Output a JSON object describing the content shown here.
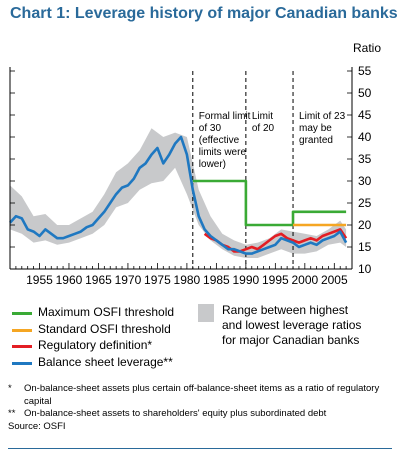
{
  "title": {
    "prefix": "Chart 1:",
    "text": "Leverage history of major Canadian banks"
  },
  "chart_data": {
    "type": "line",
    "ylabel": "Ratio",
    "ylim": [
      10,
      55
    ],
    "xlim": [
      1950,
      2008
    ],
    "y_ticks": [
      "10",
      "15",
      "20",
      "25",
      "30",
      "35",
      "40",
      "45",
      "50",
      "55"
    ],
    "x_ticks": [
      "1955",
      "1960",
      "1965",
      "1970",
      "1975",
      "1980",
      "1985",
      "1990",
      "1995",
      "2000",
      "2005"
    ],
    "grid": false,
    "legend_position": "bottom",
    "annotations": [
      {
        "text": [
          "Formal limit",
          "of 30",
          "(effective",
          "limits were",
          "lower)"
        ]
      },
      {
        "text": [
          "Limit",
          "of 20"
        ]
      },
      {
        "text": [
          "Limit of 23",
          "may be",
          "granted"
        ]
      }
    ],
    "regime_lines_x": [
      1981,
      1990,
      1998
    ],
    "series": [
      {
        "name": "Maximum OSFI threshold",
        "color": "#3aaa35",
        "x": [
          1981,
          1990,
          1990,
          1998,
          1998,
          2007
        ],
        "y": [
          30,
          30,
          20,
          20,
          23,
          23
        ]
      },
      {
        "name": "Standard OSFI threshold",
        "color": "#f5a623",
        "x": [
          1998,
          2007
        ],
        "y": [
          20,
          20
        ]
      },
      {
        "name": "Regulatory definition*",
        "color": "#e31e24",
        "x": [
          1983,
          1984,
          1985,
          1986,
          1987,
          1988,
          1989,
          1990,
          1991,
          1992,
          1993,
          1994,
          1995,
          1996,
          1997,
          1998,
          1999,
          2000,
          2001,
          2002,
          2003,
          2004,
          2005,
          2006,
          2007
        ],
        "y": [
          18,
          17,
          16.5,
          15.5,
          15,
          14,
          14,
          14.5,
          15,
          14.5,
          15.5,
          16.5,
          17.5,
          18,
          17,
          16.5,
          16,
          16.5,
          17,
          16.5,
          17.5,
          18,
          18.5,
          19,
          17
        ]
      },
      {
        "name": "Balance sheet leverage**",
        "color": "#1f78c1",
        "x": [
          1950,
          1951,
          1952,
          1953,
          1954,
          1955,
          1956,
          1957,
          1958,
          1959,
          1960,
          1961,
          1962,
          1963,
          1964,
          1965,
          1966,
          1967,
          1968,
          1969,
          1970,
          1971,
          1972,
          1973,
          1974,
          1975,
          1976,
          1977,
          1978,
          1979,
          1980,
          1981,
          1982,
          1983,
          1984,
          1985,
          1986,
          1987,
          1988,
          1989,
          1990,
          1991,
          1992,
          1993,
          1994,
          1995,
          1996,
          1997,
          1998,
          1999,
          2000,
          2001,
          2002,
          2003,
          2004,
          2005,
          2006,
          2007
        ],
        "y": [
          20.5,
          22,
          21.5,
          19,
          18.5,
          17.5,
          19,
          18,
          17,
          17,
          17.5,
          18,
          18.5,
          19.5,
          20,
          21.5,
          23,
          25,
          27,
          28.5,
          29,
          30.5,
          33,
          34,
          36,
          37.5,
          34,
          36,
          38.5,
          40,
          36,
          28,
          22,
          19,
          17.5,
          16.5,
          15.5,
          14.5,
          14.5,
          14,
          13.5,
          13.5,
          14,
          14.5,
          15,
          15.5,
          17,
          16.5,
          16,
          15,
          15.5,
          16,
          15.5,
          16.5,
          17,
          17.5,
          18.5,
          16
        ]
      },
      {
        "name": "Range between highest and lowest leverage ratios for major Canadian banks",
        "color": "#c8c9cb",
        "x": [
          1950,
          1952,
          1954,
          1956,
          1958,
          1960,
          1962,
          1964,
          1966,
          1968,
          1970,
          1972,
          1974,
          1976,
          1978,
          1980,
          1982,
          1984,
          1986,
          1988,
          1990,
          1992,
          1994,
          1996,
          1998,
          2000,
          2002,
          2004,
          2006,
          2007
        ],
        "low": [
          19,
          18,
          16,
          16.5,
          15.5,
          16,
          17,
          18,
          20,
          24,
          25,
          28,
          29.5,
          30,
          33,
          27,
          20,
          16.5,
          14.5,
          13,
          12.5,
          12.5,
          13.5,
          14.5,
          13.5,
          13.5,
          14,
          15.5,
          16,
          15
        ],
        "high": [
          29,
          26.5,
          22,
          22.5,
          20,
          20,
          21.5,
          23,
          27,
          32,
          34,
          37,
          42,
          40,
          41,
          40,
          28,
          22,
          18,
          16.5,
          15.5,
          16,
          17,
          19,
          18.5,
          18,
          17.5,
          19,
          21,
          19
        ]
      }
    ]
  },
  "legend": [
    {
      "label": "Maximum OSFI threshold",
      "color": "#3aaa35"
    },
    {
      "label": "Standard OSFI threshold",
      "color": "#f5a623"
    },
    {
      "label": "Regulatory definition*",
      "color": "#e31e24"
    },
    {
      "label": "Balance sheet leverage**",
      "color": "#1f78c1"
    }
  ],
  "range_legend": [
    "Range between highest",
    "and lowest leverage ratios",
    "for major Canadian banks"
  ],
  "notes": [
    {
      "mark": "*",
      "text": "On-balance-sheet assets plus certain off-balance-sheet items as a ratio of regulatory capital"
    },
    {
      "mark": "**",
      "text": "On-balance-sheet assets to shareholders' equity plus subordinated debt"
    }
  ],
  "source": "Source: OSFI"
}
